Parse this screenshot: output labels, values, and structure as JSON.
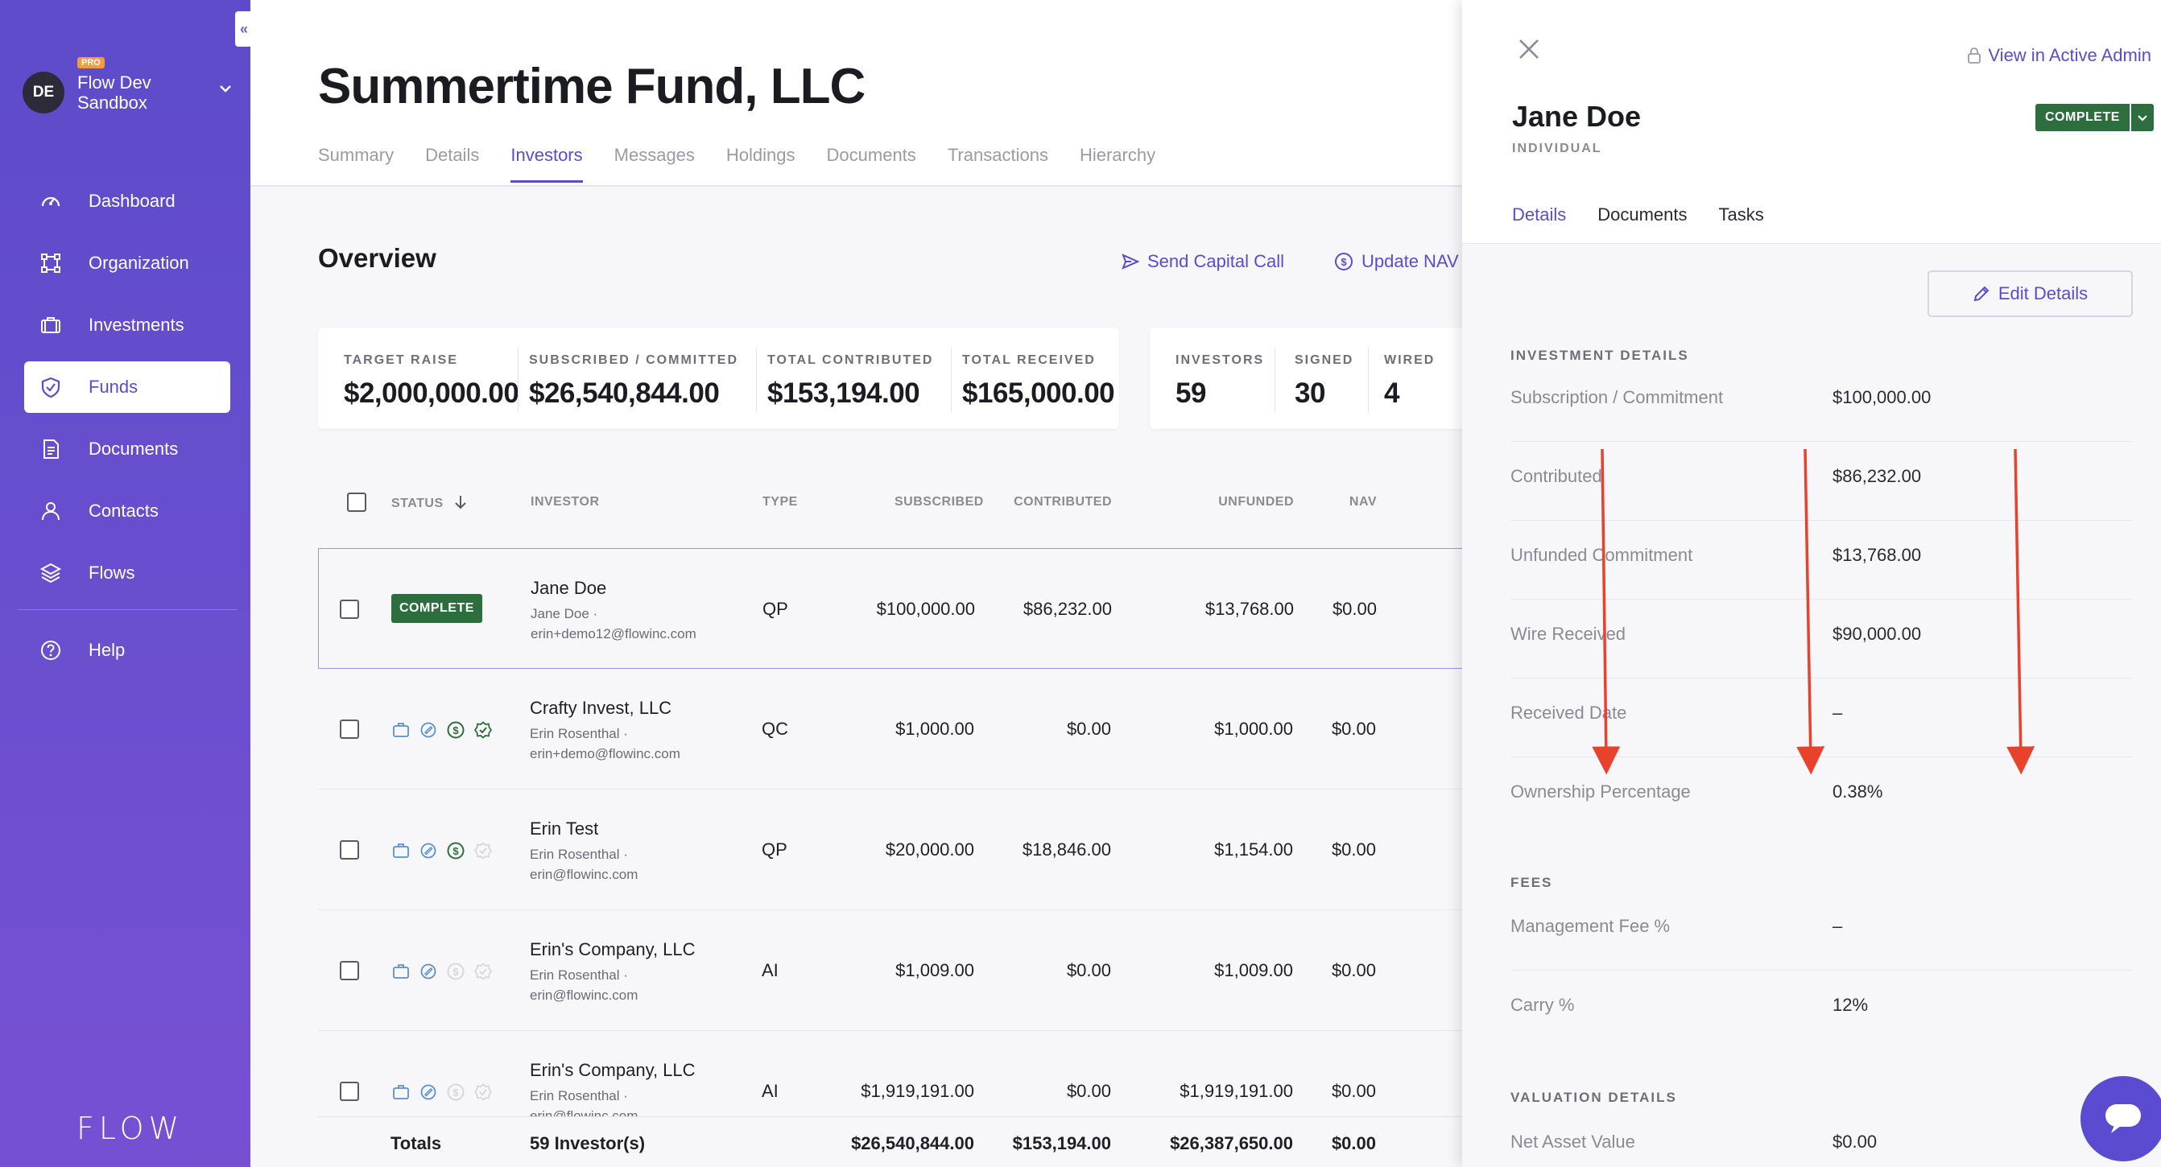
{
  "sidebar": {
    "org_initials": "DE",
    "org_badge": "PRO",
    "org_name_line1": "Flow Dev",
    "org_name_line2": "Sandbox",
    "collapse_icon": "«",
    "items": [
      {
        "label": "Dashboard",
        "icon": "gauge-icon"
      },
      {
        "label": "Organization",
        "icon": "org-chart-icon"
      },
      {
        "label": "Investments",
        "icon": "briefcase-icon"
      },
      {
        "label": "Funds",
        "icon": "shield-icon"
      },
      {
        "label": "Documents",
        "icon": "document-icon"
      },
      {
        "label": "Contacts",
        "icon": "person-icon"
      },
      {
        "label": "Flows",
        "icon": "layers-icon"
      }
    ],
    "help_label": "Help",
    "logo": "FLOW"
  },
  "main": {
    "title": "Summertime Fund, LLC",
    "tabs": [
      "Summary",
      "Details",
      "Investors",
      "Messages",
      "Holdings",
      "Documents",
      "Transactions",
      "Hierarchy"
    ],
    "active_tab": "Investors",
    "overview_title": "Overview",
    "actions": {
      "send_capital_call": "Send Capital Call",
      "update_nav": "Update NAV"
    },
    "stats": [
      {
        "label": "TARGET RAISE",
        "value": "$2,000,000.00"
      },
      {
        "label": "SUBSCRIBED / COMMITTED",
        "value": "$26,540,844.00"
      },
      {
        "label": "TOTAL CONTRIBUTED",
        "value": "$153,194.00"
      },
      {
        "label": "TOTAL RECEIVED",
        "value": "$165,000.00"
      }
    ],
    "counts": [
      {
        "label": "INVESTORS",
        "value": "59"
      },
      {
        "label": "SIGNED",
        "value": "30"
      },
      {
        "label": "WIRED",
        "value": "4"
      }
    ],
    "table": {
      "headers": {
        "status": "STATUS",
        "investor": "INVESTOR",
        "type": "TYPE",
        "subscribed": "SUBSCRIBED",
        "contributed": "CONTRIBUTED",
        "unfunded": "UNFUNDED",
        "nav": "NAV"
      },
      "rows": [
        {
          "status": "COMPLETE",
          "name": "Jane Doe",
          "sub1": "Jane Doe ·",
          "sub2": "erin+demo12@flowinc.com",
          "type": "QP",
          "subscribed": "$100,000.00",
          "contributed": "$86,232.00",
          "unfunded": "$13,768.00",
          "nav": "$0.00"
        },
        {
          "status": "",
          "name": "Crafty Invest, LLC",
          "sub1": "Erin Rosenthal ·",
          "sub2": "erin+demo@flowinc.com",
          "type": "QC",
          "subscribed": "$1,000.00",
          "contributed": "$0.00",
          "unfunded": "$1,000.00",
          "nav": "$0.00"
        },
        {
          "status": "",
          "name": "Erin Test",
          "sub1": "Erin Rosenthal ·",
          "sub2": "erin@flowinc.com",
          "type": "QP",
          "subscribed": "$20,000.00",
          "contributed": "$18,846.00",
          "unfunded": "$1,154.00",
          "nav": "$0.00"
        },
        {
          "status": "",
          "name": "Erin's Company, LLC",
          "sub1": "Erin Rosenthal ·",
          "sub2": "erin@flowinc.com",
          "type": "AI",
          "subscribed": "$1,009.00",
          "contributed": "$0.00",
          "unfunded": "$1,009.00",
          "nav": "$0.00"
        },
        {
          "status": "",
          "name": "Erin's Company, LLC",
          "sub1": "Erin Rosenthal ·",
          "sub2": "erin@flowinc.com",
          "type": "AI",
          "subscribed": "$1,919,191.00",
          "contributed": "$0.00",
          "unfunded": "$1,919,191.00",
          "nav": "$0.00"
        }
      ],
      "totals": {
        "label": "Totals",
        "investors": "59 Investor(s)",
        "subscribed": "$26,540,844.00",
        "contributed": "$153,194.00",
        "unfunded": "$26,387,650.00",
        "nav": "$0.00"
      }
    }
  },
  "drawer": {
    "admin_link": "View in Active Admin",
    "name": "Jane Doe",
    "type": "INDIVIDUAL",
    "status": "COMPLETE",
    "tabs": [
      "Details",
      "Documents",
      "Tasks"
    ],
    "active_tab": "Details",
    "edit_label": "Edit Details",
    "investment_section": "INVESTMENT DETAILS",
    "investment": [
      {
        "label": "Subscription / Commitment",
        "value": "$100,000.00"
      },
      {
        "label": "Contributed",
        "value": "$86,232.00"
      },
      {
        "label": "Unfunded Commitment",
        "value": "$13,768.00"
      },
      {
        "label": "Wire Received",
        "value": "$90,000.00"
      },
      {
        "label": "Received Date",
        "value": "–"
      },
      {
        "label": "Ownership Percentage",
        "value": "0.38%"
      }
    ],
    "fees_section": "FEES",
    "fees": [
      {
        "label": "Management Fee %",
        "value": "–"
      },
      {
        "label": "Carry %",
        "value": "12%"
      }
    ],
    "valuation_section": "VALUATION DETAILS",
    "valuation": [
      {
        "label": "Net Asset Value",
        "value": "$0.00"
      }
    ]
  },
  "colors": {
    "accent": "#5b4bd0",
    "complete": "#2d6e3e",
    "annotation_arrow": "#e8412c"
  }
}
